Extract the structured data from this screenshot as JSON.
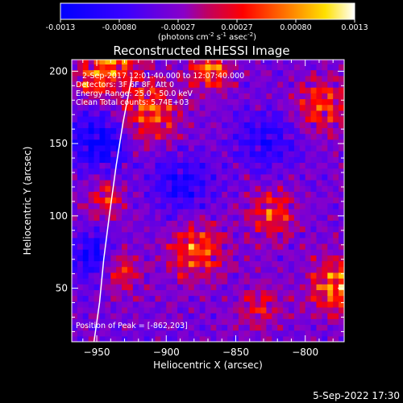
{
  "chart_data": {
    "type": "heatmap",
    "title": "Reconstructed RHESSI Image",
    "xlabel": "Heliocentric X (arcsec)",
    "ylabel": "Heliocentric Y (arcsec)",
    "xlim": [
      -968,
      -772
    ],
    "ylim": [
      13,
      208
    ],
    "xticks": [
      -950,
      -900,
      -850,
      -800
    ],
    "yticks": [
      50,
      100,
      150,
      200
    ],
    "colorbar": {
      "range": [
        -0.0013,
        0.0013
      ],
      "ticks": [
        "-0.0013",
        "-0.00080",
        "-0.00027",
        "0.00027",
        "0.00080",
        "0.0013"
      ],
      "label_main": "(photons cm",
      "label_sup1": "-2",
      "label_mid1": " s",
      "label_sup2": "-1",
      "label_mid2": " asec",
      "label_sup3": "-2",
      "label_end": ")"
    },
    "annotations": [
      "2-Sep-2017 12:01:40.000 to 12:07:40.000",
      "Detectors: 3F 6F 8F, Att 0",
      "Energy Range: 25.0 - 50.0 keV",
      "Clean    Total counts: 5.74E+03"
    ],
    "peak_text": "Position of Peak = [-862,203]",
    "peak": [
      -862,
      203
    ],
    "limb_curve": [
      [
        -952,
        13
      ],
      [
        -948,
        40
      ],
      [
        -945,
        70
      ],
      [
        -941,
        100
      ],
      [
        -936,
        135
      ],
      [
        -931,
        165
      ],
      [
        -925,
        195
      ]
    ],
    "hot_regions": [
      {
        "x": -915,
        "y": 170,
        "amp": 0.0011,
        "r": 22
      },
      {
        "x": -940,
        "y": 205,
        "amp": 0.0012,
        "r": 15
      },
      {
        "x": -870,
        "y": 200,
        "amp": 0.0013,
        "r": 14
      },
      {
        "x": -790,
        "y": 175,
        "amp": 0.001,
        "r": 18
      },
      {
        "x": -945,
        "y": 110,
        "amp": 0.0009,
        "r": 12
      },
      {
        "x": -880,
        "y": 75,
        "amp": 0.0011,
        "r": 20
      },
      {
        "x": -825,
        "y": 100,
        "amp": 0.001,
        "r": 16
      },
      {
        "x": -780,
        "y": 50,
        "amp": 0.0013,
        "r": 18
      },
      {
        "x": -835,
        "y": 35,
        "amp": 0.0007,
        "r": 14
      },
      {
        "x": -935,
        "y": 60,
        "amp": 0.0008,
        "r": 14
      },
      {
        "x": -955,
        "y": 190,
        "amp": 0.001,
        "r": 12
      }
    ],
    "cold_regions": [
      {
        "x": -950,
        "y": 150,
        "amp": -0.0012,
        "r": 20
      },
      {
        "x": -830,
        "y": 150,
        "amp": -0.0008,
        "r": 20
      },
      {
        "x": -890,
        "y": 120,
        "amp": -0.0008,
        "r": 22
      },
      {
        "x": -955,
        "y": 70,
        "amp": -0.001,
        "r": 16
      }
    ]
  },
  "timestamp": "5-Sep-2022 17:30"
}
